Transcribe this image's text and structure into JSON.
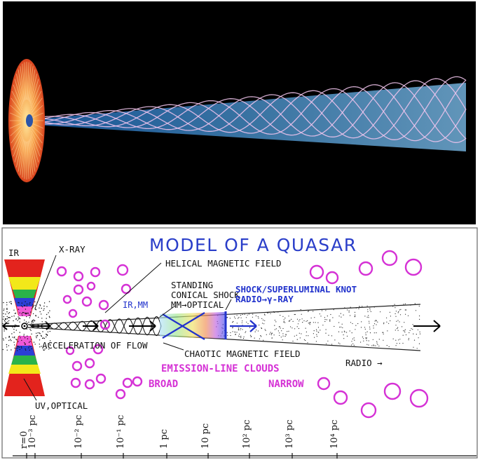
{
  "top_panel": {
    "description_colors": {
      "background": "#000000",
      "disk": "#e8662a",
      "jet": "#4f9fe0",
      "helix": "#e7b5e6"
    }
  },
  "diagram": {
    "title": "MODEL OF A QUASAR",
    "labels": {
      "ir": "IR",
      "xray": "X-RAY",
      "helical": "HELICAL MAGNETIC FIELD",
      "standing": "STANDING",
      "conical": "CONICAL SHOCK",
      "mm_optical": "MM→OPTICAL",
      "irmm": "IR,MM",
      "shock_knot": "SHOCK/SUPERLUMINAL KNOT",
      "radio_gamma": "RADIO→γ-RAY",
      "acceleration": "ACCELERATION OF FLOW",
      "chaotic": "CHAOTIC MAGNETIC FIELD",
      "emission": "EMISSION-LINE CLOUDS",
      "broad": "BROAD",
      "narrow": "NARROW",
      "radio": "RADIO →",
      "uv_optical": "UV,OPTICAL"
    },
    "scale_ticks": [
      "r=0",
      "10⁻³ pc",
      "10⁻² pc",
      "10⁻¹ pc",
      "1 pc",
      "10 pc",
      "10² pc",
      "10³ pc",
      "10⁴ pc"
    ],
    "colors": {
      "title": "#2a3ec9",
      "clouds": "#d531d5",
      "knot": "#2233cc"
    }
  }
}
